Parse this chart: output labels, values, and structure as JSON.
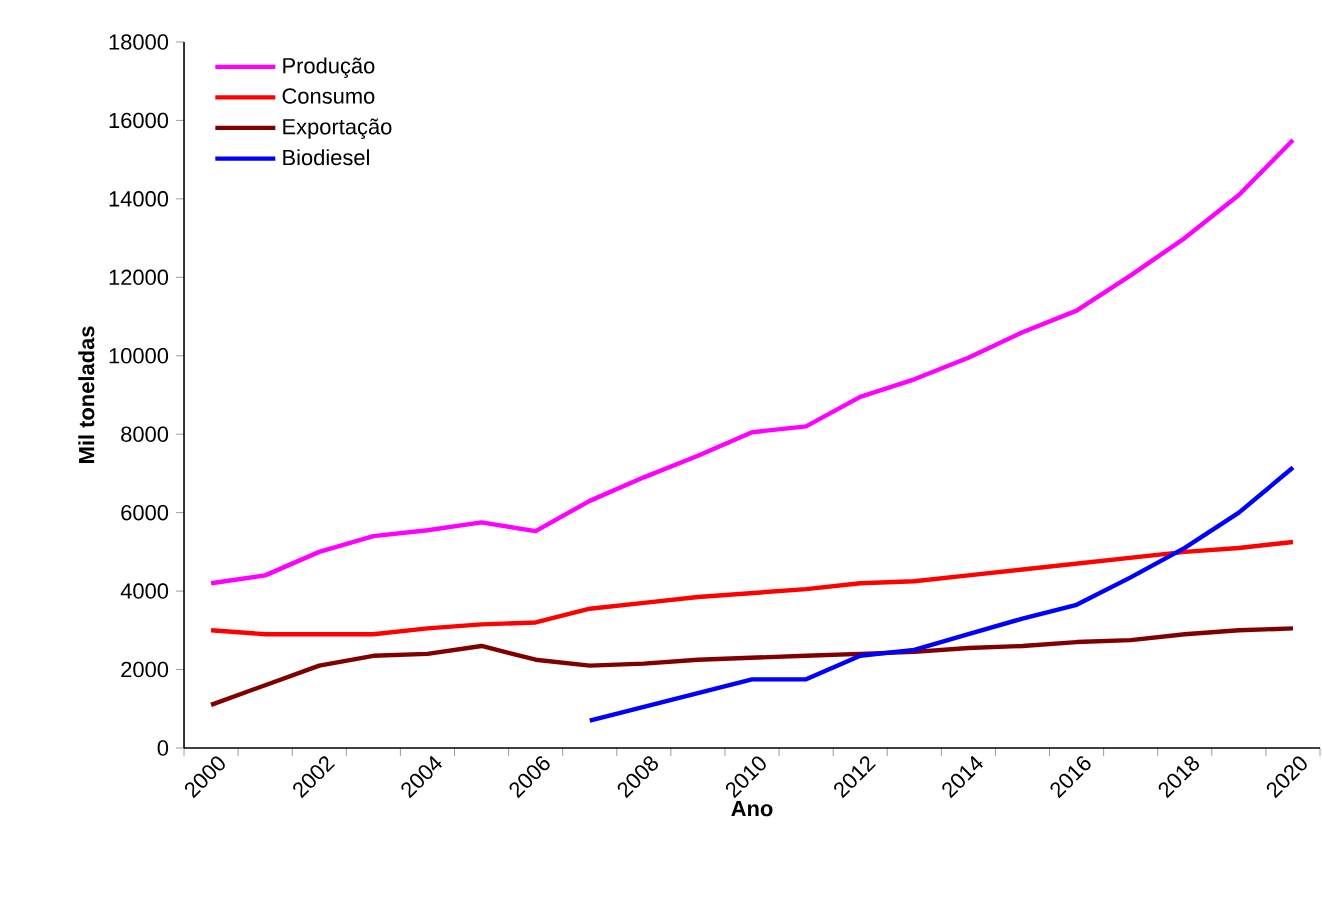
{
  "chart_data": {
    "type": "line",
    "xlabel": "Ano",
    "ylabel": "Mil toneladas",
    "categories": [
      "2000",
      null,
      "2002",
      null,
      "2004",
      null,
      "2006",
      null,
      "2008",
      null,
      "2010",
      null,
      "2012",
      null,
      "2014",
      null,
      "2016",
      null,
      "2018",
      null,
      "2020"
    ],
    "series": [
      {
        "name": "Produção",
        "color": "#ff00ff",
        "values": [
          4200,
          4400,
          5000,
          5400,
          5550,
          5750,
          5530,
          6300,
          6900,
          7450,
          8050,
          8200,
          8950,
          9400,
          9950,
          10600,
          11150,
          12050,
          13000,
          14100,
          15500
        ]
      },
      {
        "name": "Consumo",
        "color": "#ff0000",
        "values": [
          3000,
          2900,
          2900,
          2900,
          3050,
          3150,
          3200,
          3550,
          3700,
          3850,
          3950,
          4050,
          4200,
          4250,
          4400,
          4550,
          4700,
          4850,
          5000,
          5100,
          5250
        ]
      },
      {
        "name": "Exportação",
        "color": "#800000",
        "values": [
          1100,
          1600,
          2100,
          2350,
          2400,
          2600,
          2250,
          2100,
          2150,
          2250,
          2300,
          2350,
          2400,
          2450,
          2550,
          2600,
          2700,
          2750,
          2900,
          3000,
          3050
        ]
      },
      {
        "name": "Biodiesel",
        "color": "#0000ff",
        "values": [
          null,
          null,
          null,
          null,
          null,
          null,
          null,
          700,
          1050,
          1400,
          1750,
          1750,
          2350,
          2500,
          2900,
          3300,
          3650,
          4350,
          5100,
          6000,
          7150
        ]
      }
    ],
    "ylim": [
      0,
      18000
    ],
    "yticks": [
      0,
      2000,
      4000,
      6000,
      8000,
      10000,
      12000,
      14000,
      16000,
      18000
    ],
    "grid": false,
    "legend": "top left",
    "marker": "none",
    "line_style": "solid"
  }
}
